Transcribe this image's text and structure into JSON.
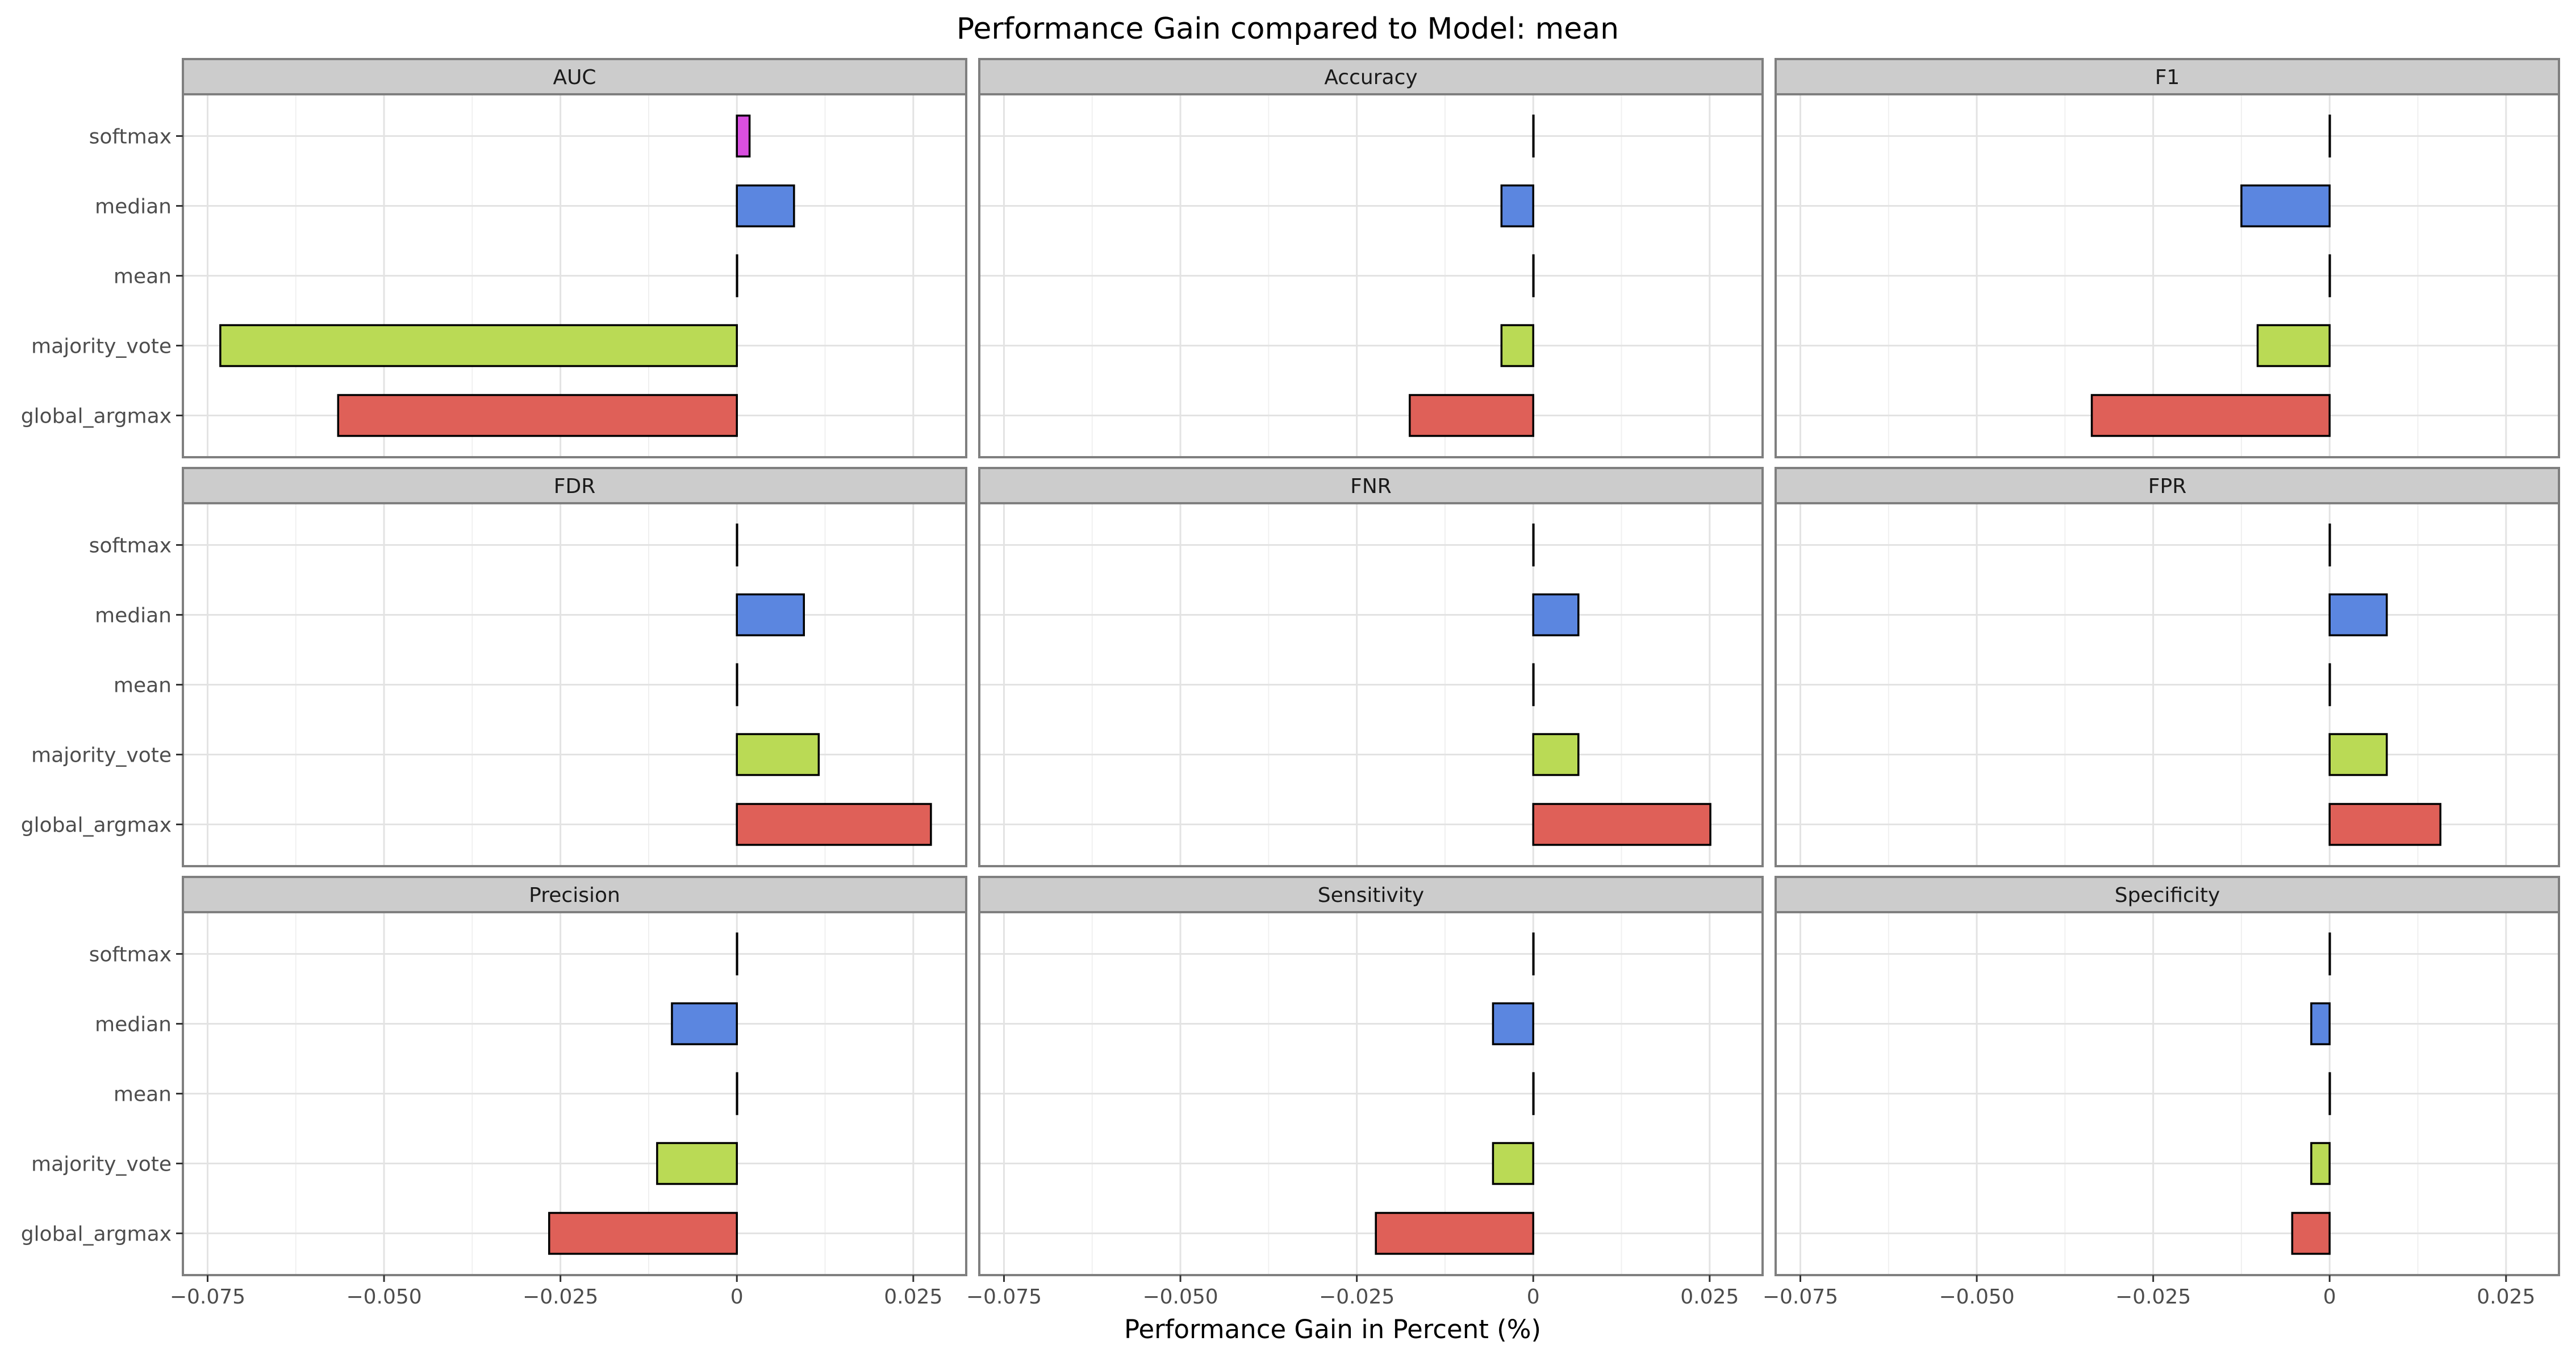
{
  "chart_data": {
    "type": "bar",
    "orientation": "horizontal",
    "title": "Performance Gain compared to Model: mean",
    "xlabel": "Performance Gain in Percent (%)",
    "ylabel": "",
    "categories": [
      "softmax",
      "median",
      "mean",
      "majority_vote",
      "global_argmax"
    ],
    "xlim": [
      -0.0785,
      0.0325
    ],
    "xticks": [
      -0.075,
      -0.05,
      -0.025,
      0,
      0.025
    ],
    "xtick_labels": [
      "−0.075",
      "−0.050",
      "−0.025",
      "0",
      "0.025"
    ],
    "grid": true,
    "layout": {
      "rows": 3,
      "cols": 3
    },
    "colors": {
      "softmax": "#d94fe0",
      "median": "#5b86e0",
      "mean": "#f2c12e",
      "majority_vote": "#bada55",
      "global_argmax": "#df6058"
    },
    "facets": [
      {
        "name": "AUC",
        "values": [
          0.0018,
          0.0081,
          0.0,
          -0.0732,
          -0.0565
        ]
      },
      {
        "name": "Accuracy",
        "values": [
          0.0,
          -0.0045,
          0.0,
          -0.0045,
          -0.0175
        ]
      },
      {
        "name": "F1",
        "values": [
          0.0,
          -0.0125,
          0.0,
          -0.0102,
          -0.0337
        ]
      },
      {
        "name": "FDR",
        "values": [
          0.0,
          0.0095,
          0.0,
          0.0116,
          0.0275
        ]
      },
      {
        "name": "FNR",
        "values": [
          0.0,
          0.0064,
          0.0,
          0.0064,
          0.0251
        ]
      },
      {
        "name": "FPR",
        "values": [
          0.0,
          0.0081,
          0.0,
          0.0081,
          0.0157
        ]
      },
      {
        "name": "Precision",
        "values": [
          0.0,
          -0.0092,
          0.0,
          -0.0113,
          -0.0266
        ]
      },
      {
        "name": "Sensitivity",
        "values": [
          0.0,
          -0.0057,
          0.0,
          -0.0057,
          -0.0223
        ]
      },
      {
        "name": "Specificity",
        "values": [
          0.0,
          -0.0026,
          0.0,
          -0.0026,
          -0.0053
        ]
      }
    ]
  }
}
